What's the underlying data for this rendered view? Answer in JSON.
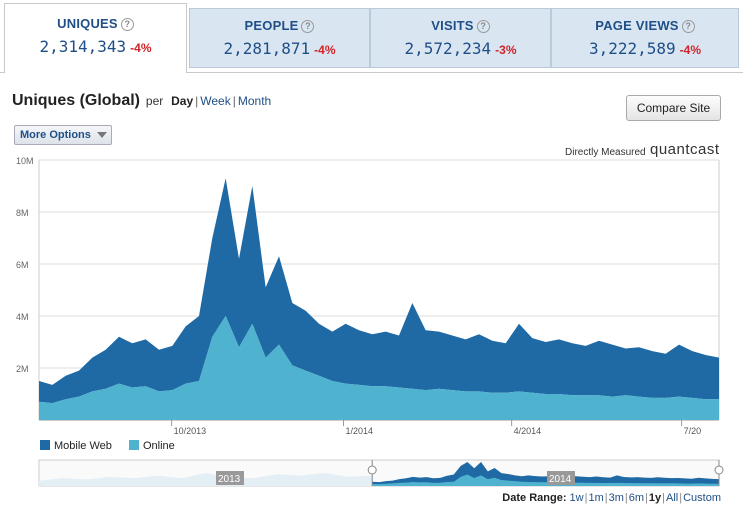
{
  "tabs": [
    {
      "label": "UNIQUES",
      "value": "2,314,343",
      "change": "-4%",
      "active": true
    },
    {
      "label": "PEOPLE",
      "value": "2,281,871",
      "change": "-4%",
      "active": false
    },
    {
      "label": "VISITS",
      "value": "2,572,234",
      "change": "-3%",
      "active": false
    },
    {
      "label": "PAGE VIEWS",
      "value": "3,222,589",
      "change": "-4%",
      "active": false
    }
  ],
  "help_glyph": "?",
  "heading": {
    "title": "Uniques (Global)",
    "per": "per",
    "periods": [
      "Day",
      "Week",
      "Month"
    ],
    "selected_period": "Day"
  },
  "compare_button": "Compare Site",
  "more_options": "More Options",
  "measured_label": "Directly Measured",
  "brand": "quantcast",
  "date_range": {
    "label": "Date Range:",
    "options": [
      "1w",
      "1m",
      "3m",
      "6m",
      "1y",
      "All",
      "Custom"
    ],
    "selected": "1y"
  },
  "colors": {
    "mobile_web": "#1f6aa5",
    "online": "#4fb3d0",
    "tab_bg": "#d9e6f2",
    "change_negative": "#d2232a"
  },
  "chart_data": {
    "type": "area",
    "stacked": true,
    "y_tick_labels": [
      "10M",
      "8M",
      "6M",
      "4M",
      "2M"
    ],
    "ylim": [
      0,
      10000000
    ],
    "x_tick_labels": [
      "10/2013",
      "1/2014",
      "4/2014",
      "7/20"
    ],
    "grid": true,
    "legend_position": "bottom-left",
    "navigator_labels": [
      "2013",
      "2014"
    ],
    "x_range": [
      "2013-07-22",
      "2014-07-21"
    ],
    "series": [
      {
        "name": "Online",
        "color": "#4fb3d0",
        "values": [
          700000,
          650000,
          800000,
          900000,
          1100000,
          1200000,
          1400000,
          1250000,
          1300000,
          1100000,
          1150000,
          1400000,
          1500000,
          3200000,
          4000000,
          2800000,
          3700000,
          2400000,
          2900000,
          2100000,
          1900000,
          1700000,
          1500000,
          1400000,
          1350000,
          1300000,
          1300000,
          1250000,
          1200000,
          1150000,
          1200000,
          1150000,
          1100000,
          1100000,
          1050000,
          1050000,
          1100000,
          1050000,
          1000000,
          1000000,
          950000,
          950000,
          950000,
          900000,
          950000,
          900000,
          850000,
          850000,
          900000,
          850000,
          800000,
          800000
        ]
      },
      {
        "name": "Mobile Web",
        "color": "#1f6aa5",
        "values": [
          800000,
          700000,
          900000,
          1000000,
          1300000,
          1500000,
          1800000,
          1700000,
          1800000,
          1600000,
          1700000,
          2200000,
          2500000,
          3800000,
          5300000,
          3400000,
          5300000,
          2700000,
          3400000,
          2400000,
          2300000,
          2000000,
          1900000,
          2300000,
          2100000,
          2000000,
          2100000,
          2000000,
          3300000,
          2300000,
          2200000,
          2100000,
          2000000,
          2200000,
          2000000,
          1900000,
          2600000,
          2100000,
          2000000,
          2100000,
          2000000,
          1900000,
          2100000,
          2000000,
          1800000,
          1900000,
          1800000,
          1700000,
          2000000,
          1800000,
          1700000,
          1600000
        ]
      }
    ]
  }
}
